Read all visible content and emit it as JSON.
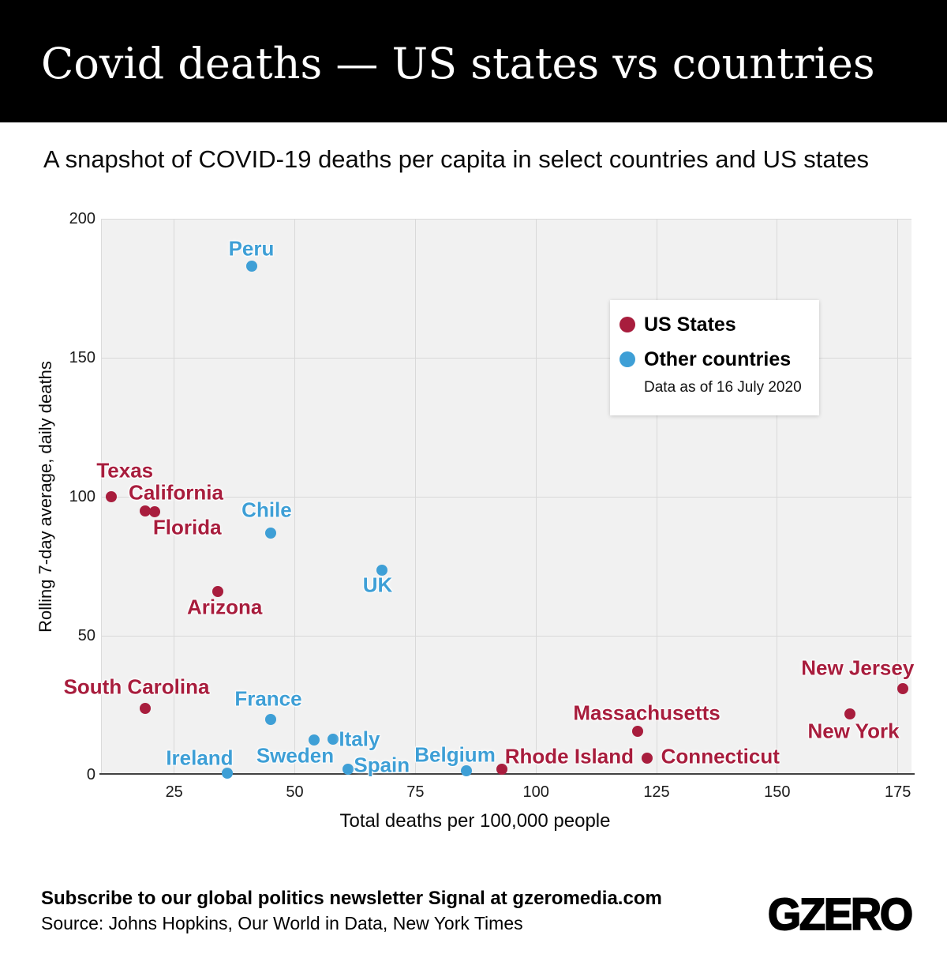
{
  "colors": {
    "us_states": "#A81D3D",
    "other_countries": "#3E9FD6",
    "header_bg": "#000000",
    "plot_bg": "#F1F1F1",
    "gridline": "#D9D9D9",
    "axis_line": "#424242"
  },
  "chart_data": {
    "type": "scatter",
    "title": "Covid deaths — US states vs countries",
    "subtitle": "A snapshot of COVID-19 deaths per capita in select countries and US states",
    "xlabel": "Total deaths per 100,000 people",
    "ylabel": "Rolling 7-day average, daily deaths",
    "xlim": [
      10,
      178
    ],
    "ylim": [
      0,
      200
    ],
    "x_ticks": [
      25,
      50,
      75,
      100,
      125,
      150,
      175
    ],
    "y_ticks": [
      0,
      50,
      100,
      150,
      200
    ],
    "grid": true,
    "legend": {
      "position": "upper-right",
      "note": "Data as of 16 July 2020"
    },
    "series": [
      {
        "name": "US States",
        "color": "#A81D3D",
        "points": [
          {
            "label": "Texas",
            "x": 12,
            "y": 100,
            "label_dx": 17,
            "label_dy": -33
          },
          {
            "label": "California",
            "x": 19,
            "y": 95,
            "label_dx": 39,
            "label_dy": -23
          },
          {
            "label": "Florida",
            "x": 21,
            "y": 94.5,
            "label_dx": 41,
            "label_dy": 20
          },
          {
            "label": "Arizona",
            "x": 34,
            "y": 66,
            "label_dx": 9,
            "label_dy": 20
          },
          {
            "label": "South Carolina",
            "x": 19,
            "y": 24,
            "label_dx": -11,
            "label_dy": -27
          },
          {
            "label": "Massachusetts",
            "x": 121,
            "y": 15.5,
            "label_dx": 12,
            "label_dy": -23
          },
          {
            "label": "Rhode Island",
            "x": 93,
            "y": 2,
            "label_dx": 85,
            "label_dy": -16
          },
          {
            "label": "Connecticut",
            "x": 123,
            "y": 6,
            "label_dx": 93,
            "label_dy": -2
          },
          {
            "label": "New Jersey",
            "x": 176,
            "y": 31,
            "label_dx": -57,
            "label_dy": -26
          },
          {
            "label": "New York",
            "x": 165,
            "y": 22,
            "label_dx": 5,
            "label_dy": 22
          }
        ]
      },
      {
        "name": "Other countries",
        "color": "#3E9FD6",
        "points": [
          {
            "label": "Peru",
            "x": 41,
            "y": 183,
            "label_dx": 0,
            "label_dy": -22
          },
          {
            "label": "Chile",
            "x": 45,
            "y": 87,
            "label_dx": -5,
            "label_dy": -29
          },
          {
            "label": "UK",
            "x": 68,
            "y": 73.5,
            "label_dx": -5,
            "label_dy": 19
          },
          {
            "label": "France",
            "x": 45,
            "y": 20,
            "label_dx": -3,
            "label_dy": -26
          },
          {
            "label": "Sweden",
            "x": 54,
            "y": 12.5,
            "label_dx": -24,
            "label_dy": 20
          },
          {
            "label": "Italy",
            "x": 58,
            "y": 12.7,
            "label_dx": 33,
            "label_dy": 0
          },
          {
            "label": "Spain",
            "x": 61,
            "y": 2,
            "label_dx": 43,
            "label_dy": -5
          },
          {
            "label": "Ireland",
            "x": 36,
            "y": 0.5,
            "label_dx": -35,
            "label_dy": -19
          },
          {
            "label": "Belgium",
            "x": 85.5,
            "y": 1.5,
            "label_dx": -14,
            "label_dy": -20
          }
        ]
      }
    ]
  },
  "footer": {
    "subscribe": "Subscribe to our global politics newsletter Signal at gzeromedia.com",
    "source": "Source: Johns Hopkins, Our World in Data, New York Times",
    "logo": "GZERO"
  }
}
